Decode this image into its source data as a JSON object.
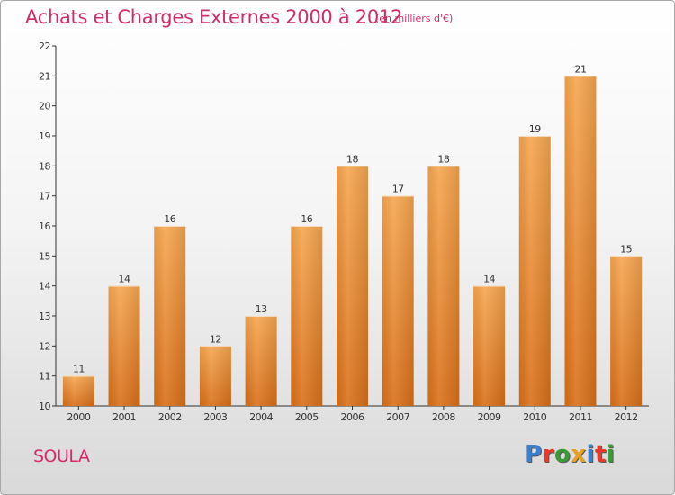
{
  "title": "Achats et Charges Externes 2000 à 2012",
  "subtitle": "(en milliers d'€)",
  "commune": "SOULA",
  "logo": {
    "text": "Proxiti",
    "colors": [
      "#3a7fd0",
      "#e83a2c",
      "#3a9a35",
      "#e8a020",
      "#3a7fd0",
      "#e83a2c",
      "#3a9a35"
    ]
  },
  "colors": {
    "bar_light": "#f6a650",
    "bar_dark": "#d96f18",
    "axis": "#333333",
    "label": "#333333"
  },
  "chart_data": {
    "type": "bar",
    "categories": [
      "2000",
      "2001",
      "2002",
      "2003",
      "2004",
      "2005",
      "2006",
      "2007",
      "2008",
      "2009",
      "2010",
      "2011",
      "2012"
    ],
    "values": [
      11,
      14,
      16,
      12,
      13,
      16,
      18,
      17,
      18,
      14,
      19,
      21,
      15
    ],
    "data_labels": [
      "11",
      "14",
      "16",
      "12",
      "13",
      "16",
      "18",
      "17",
      "18",
      "14",
      "19",
      "21",
      "15"
    ],
    "yticks": [
      "10",
      "11",
      "12",
      "13",
      "14",
      "15",
      "16",
      "17",
      "18",
      "19",
      "20",
      "21",
      "22"
    ],
    "ylim": [
      10,
      22
    ],
    "grid": false,
    "legend": "none"
  }
}
